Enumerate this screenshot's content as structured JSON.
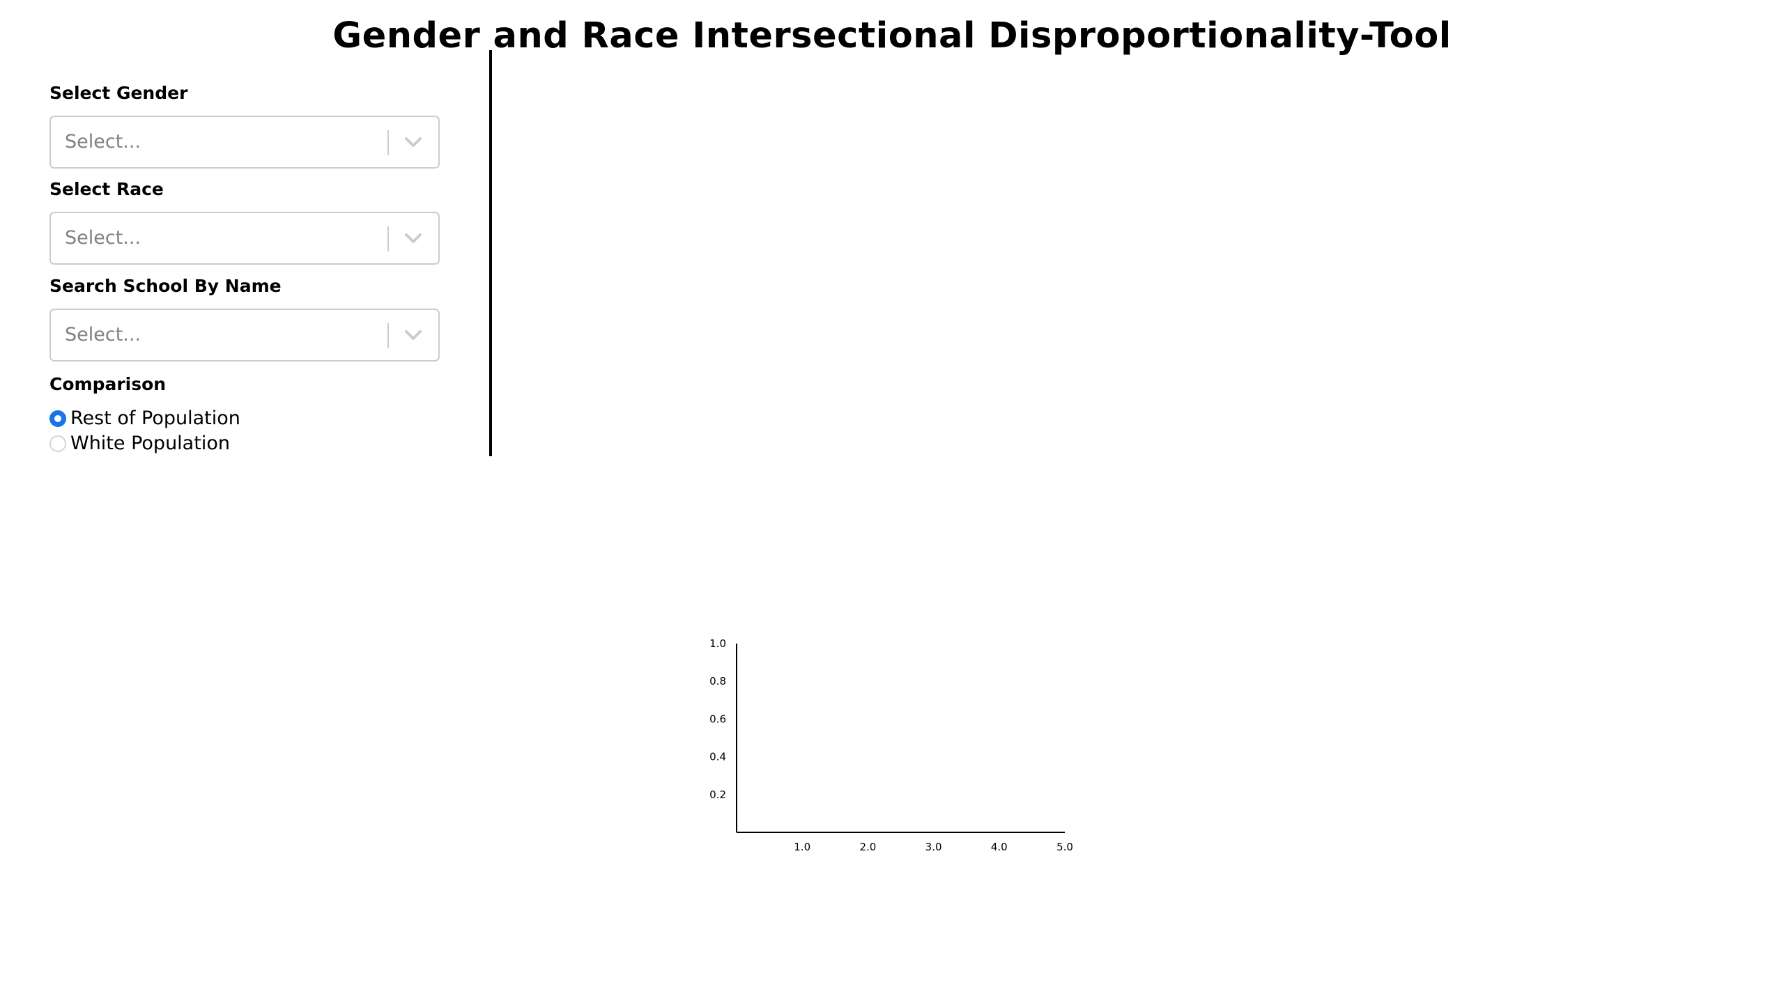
{
  "title": "Gender and Race Intersectional Disproportionality-Tool",
  "filters": {
    "gender": {
      "label": "Select Gender",
      "placeholder": "Select...",
      "icon": "chevron-down-icon"
    },
    "race": {
      "label": "Select Race",
      "placeholder": "Select...",
      "icon": "chevron-down-icon"
    },
    "school": {
      "label": "Search School By Name",
      "placeholder": "Select...",
      "icon": "chevron-down-icon"
    }
  },
  "comparison": {
    "label": "Comparison",
    "options": [
      {
        "label": "Rest of Population",
        "selected": true
      },
      {
        "label": "White Population",
        "selected": false
      }
    ]
  },
  "colors": {
    "radio_selected": "#1a73e8",
    "select_border": "#cccccc",
    "placeholder_text": "#808080",
    "axis": "#000000"
  },
  "chart_data": {
    "type": "line",
    "title": "",
    "xlabel": "",
    "ylabel": "",
    "series": [],
    "xlim": [
      0,
      5
    ],
    "ylim": [
      0,
      1
    ],
    "x_ticks": [
      "1.0",
      "2.0",
      "3.0",
      "4.0",
      "5.0"
    ],
    "y_ticks": [
      "0.2",
      "0.4",
      "0.6",
      "0.8",
      "1.0"
    ],
    "grid": false
  }
}
